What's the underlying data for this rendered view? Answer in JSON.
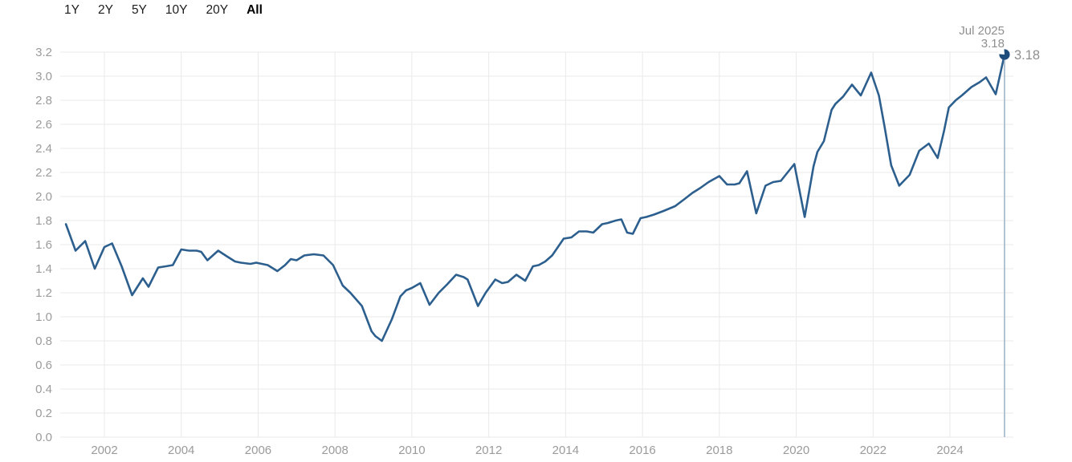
{
  "range_selector": {
    "options": [
      {
        "label": "1Y",
        "selected": false
      },
      {
        "label": "2Y",
        "selected": false
      },
      {
        "label": "5Y",
        "selected": false
      },
      {
        "label": "10Y",
        "selected": false
      },
      {
        "label": "20Y",
        "selected": false
      },
      {
        "label": "All",
        "selected": true
      }
    ]
  },
  "tooltip": {
    "date": "Jul 2025",
    "value": "3.18"
  },
  "point_label": "3.18",
  "colors": {
    "line": "#2d5f8e",
    "marker": "#1e4d7b",
    "grid": "#e9e9e9",
    "axis_text": "#9b9b9b",
    "tooltip_text": "#8f8f8f",
    "crosshair": "#9fb4c9",
    "tab_text": "#1d1d1d",
    "tab_selected_text": "#000000"
  },
  "chart_data": {
    "type": "line",
    "title": "",
    "xlabel": "",
    "ylabel": "",
    "grid": true,
    "legend": "none",
    "ylim": [
      0.0,
      3.2
    ],
    "ytick_step": 0.2,
    "xlim": [
      2000.85,
      2025.65
    ],
    "xticks": [
      2002,
      2004,
      2006,
      2008,
      2010,
      2012,
      2014,
      2016,
      2018,
      2020,
      2022,
      2024
    ],
    "series": [
      {
        "name": "value",
        "x": [
          2001.0,
          2001.25,
          2001.5,
          2001.75,
          2002.0,
          2002.2,
          2002.45,
          2002.72,
          2003.0,
          2003.15,
          2003.4,
          2003.6,
          2003.78,
          2004.0,
          2004.2,
          2004.4,
          2004.52,
          2004.68,
          2004.96,
          2005.2,
          2005.4,
          2005.55,
          2005.8,
          2005.95,
          2006.1,
          2006.25,
          2006.5,
          2006.7,
          2006.85,
          2007.0,
          2007.2,
          2007.45,
          2007.7,
          2007.95,
          2008.2,
          2008.4,
          2008.7,
          2008.95,
          2009.05,
          2009.22,
          2009.48,
          2009.7,
          2009.85,
          2010.0,
          2010.22,
          2010.46,
          2010.7,
          2010.92,
          2011.15,
          2011.35,
          2011.45,
          2011.72,
          2011.92,
          2012.17,
          2012.35,
          2012.5,
          2012.72,
          2012.95,
          2013.15,
          2013.3,
          2013.47,
          2013.65,
          2013.95,
          2014.15,
          2014.35,
          2014.55,
          2014.72,
          2014.95,
          2015.1,
          2015.3,
          2015.45,
          2015.6,
          2015.75,
          2015.95,
          2016.1,
          2016.3,
          2016.55,
          2016.85,
          2017.1,
          2017.3,
          2017.5,
          2017.72,
          2018.0,
          2018.2,
          2018.4,
          2018.52,
          2018.72,
          2018.96,
          2019.2,
          2019.4,
          2019.6,
          2019.95,
          2020.22,
          2020.45,
          2020.55,
          2020.72,
          2020.92,
          2021.02,
          2021.22,
          2021.45,
          2021.68,
          2021.95,
          2022.15,
          2022.3,
          2022.47,
          2022.68,
          2022.95,
          2023.2,
          2023.45,
          2023.68,
          2023.85,
          2023.97,
          2024.15,
          2024.31,
          2024.56,
          2024.77,
          2024.94,
          2025.19,
          2025.42
        ],
        "values": [
          1.77,
          1.55,
          1.63,
          1.4,
          1.58,
          1.61,
          1.42,
          1.18,
          1.32,
          1.25,
          1.41,
          1.42,
          1.43,
          1.56,
          1.55,
          1.55,
          1.54,
          1.47,
          1.55,
          1.5,
          1.46,
          1.45,
          1.44,
          1.45,
          1.44,
          1.43,
          1.38,
          1.43,
          1.48,
          1.47,
          1.51,
          1.52,
          1.51,
          1.43,
          1.26,
          1.2,
          1.09,
          0.88,
          0.84,
          0.8,
          0.98,
          1.17,
          1.22,
          1.24,
          1.28,
          1.1,
          1.2,
          1.27,
          1.35,
          1.33,
          1.31,
          1.09,
          1.2,
          1.31,
          1.28,
          1.29,
          1.35,
          1.3,
          1.42,
          1.43,
          1.46,
          1.51,
          1.65,
          1.66,
          1.71,
          1.71,
          1.7,
          1.77,
          1.78,
          1.8,
          1.81,
          1.7,
          1.69,
          1.82,
          1.83,
          1.85,
          1.88,
          1.92,
          1.98,
          2.03,
          2.07,
          2.12,
          2.17,
          2.1,
          2.1,
          2.11,
          2.21,
          1.86,
          2.09,
          2.12,
          2.13,
          2.27,
          1.83,
          2.25,
          2.37,
          2.46,
          2.72,
          2.77,
          2.83,
          2.93,
          2.84,
          3.03,
          2.84,
          2.58,
          2.26,
          2.09,
          2.18,
          2.38,
          2.44,
          2.32,
          2.55,
          2.74,
          2.8,
          2.84,
          2.91,
          2.95,
          2.99,
          2.85,
          3.18
        ]
      }
    ],
    "last_point": {
      "x": 2025.42,
      "value": 3.18,
      "date_label": "Jul 2025",
      "value_label": "3.18"
    }
  }
}
